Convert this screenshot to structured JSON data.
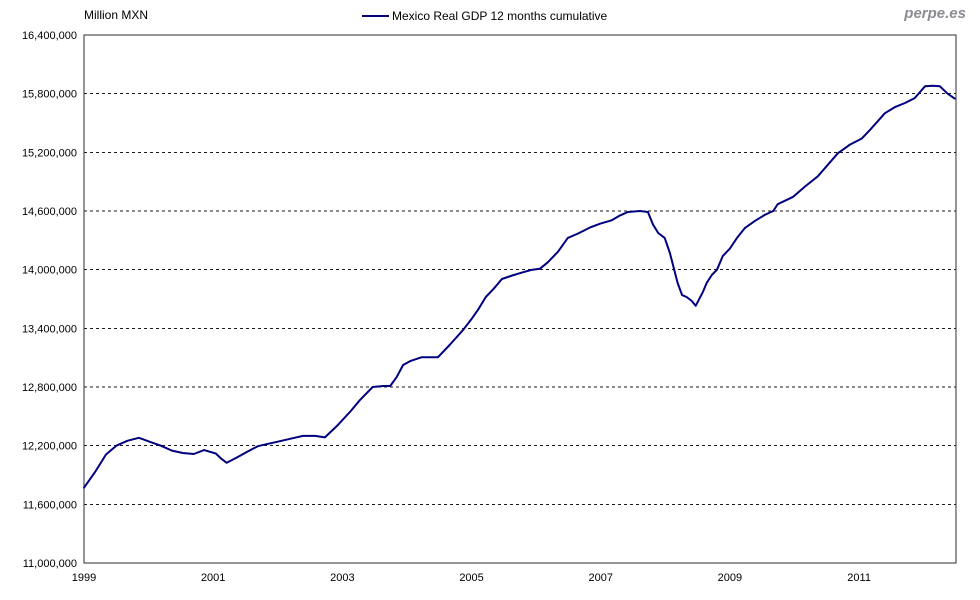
{
  "header": {
    "y_axis_title": "Million MXN",
    "watermark": "perpe.es"
  },
  "legend": {
    "label": "Mexico Real GDP 12 months cumulative"
  },
  "colors": {
    "line": "#000080",
    "grid": "#1a1a1a",
    "axis": "#2e2e2e",
    "text": "#000000",
    "watermark": "#8b8b93"
  },
  "chart_data": {
    "type": "line",
    "title": "Mexico Real GDP 12 months cumulative",
    "ylabel": "Million MXN",
    "grid": "horizontal-dashed",
    "legend_position": "top-center",
    "xlim": [
      1999,
      2012.5
    ],
    "ylim": [
      11000000,
      16400000
    ],
    "y_tick_step": 600000,
    "y_ticks": [
      16400000,
      15800000,
      15200000,
      14600000,
      14000000,
      13400000,
      12800000,
      12200000,
      11600000,
      11000000
    ],
    "x_ticks": [
      1999,
      2001,
      2003,
      2005,
      2007,
      2009,
      2011
    ],
    "series": [
      {
        "name": "Mexico Real GDP 12 months cumulative",
        "color": "#000080",
        "points": [
          [
            1999.0,
            11770000
          ],
          [
            1999.17,
            11930000
          ],
          [
            1999.34,
            12110000
          ],
          [
            1999.5,
            12200000
          ],
          [
            1999.67,
            12250000
          ],
          [
            1999.85,
            12280000
          ],
          [
            2000.02,
            12240000
          ],
          [
            2000.19,
            12200000
          ],
          [
            2000.36,
            12150000
          ],
          [
            2000.53,
            12125000
          ],
          [
            2000.7,
            12115000
          ],
          [
            2000.86,
            12155000
          ],
          [
            2001.04,
            12120000
          ],
          [
            2001.12,
            12070000
          ],
          [
            2001.21,
            12025000
          ],
          [
            2001.37,
            12080000
          ],
          [
            2001.52,
            12135000
          ],
          [
            2001.69,
            12195000
          ],
          [
            2001.79,
            12210000
          ],
          [
            2001.99,
            12240000
          ],
          [
            2002.19,
            12270000
          ],
          [
            2002.39,
            12300000
          ],
          [
            2002.58,
            12300000
          ],
          [
            2002.73,
            12285000
          ],
          [
            2002.93,
            12410000
          ],
          [
            2003.13,
            12555000
          ],
          [
            2003.27,
            12665000
          ],
          [
            2003.47,
            12800000
          ],
          [
            2003.63,
            12810000
          ],
          [
            2003.74,
            12810000
          ],
          [
            2003.84,
            12900000
          ],
          [
            2003.94,
            13025000
          ],
          [
            2004.05,
            13065000
          ],
          [
            2004.23,
            13105000
          ],
          [
            2004.48,
            13105000
          ],
          [
            2004.66,
            13230000
          ],
          [
            2004.87,
            13385000
          ],
          [
            2005.01,
            13505000
          ],
          [
            2005.1,
            13590000
          ],
          [
            2005.22,
            13720000
          ],
          [
            2005.35,
            13810000
          ],
          [
            2005.47,
            13905000
          ],
          [
            2005.63,
            13940000
          ],
          [
            2005.78,
            13970000
          ],
          [
            2005.94,
            14000000
          ],
          [
            2006.06,
            14010000
          ],
          [
            2006.18,
            14075000
          ],
          [
            2006.34,
            14185000
          ],
          [
            2006.49,
            14325000
          ],
          [
            2006.65,
            14370000
          ],
          [
            2006.83,
            14430000
          ],
          [
            2006.99,
            14470000
          ],
          [
            2007.17,
            14505000
          ],
          [
            2007.3,
            14555000
          ],
          [
            2007.42,
            14590000
          ],
          [
            2007.61,
            14600000
          ],
          [
            2007.73,
            14590000
          ],
          [
            2007.81,
            14460000
          ],
          [
            2007.89,
            14375000
          ],
          [
            2007.99,
            14325000
          ],
          [
            2008.07,
            14170000
          ],
          [
            2008.13,
            14020000
          ],
          [
            2008.19,
            13865000
          ],
          [
            2008.26,
            13740000
          ],
          [
            2008.33,
            13720000
          ],
          [
            2008.41,
            13680000
          ],
          [
            2008.47,
            13630000
          ],
          [
            2008.58,
            13770000
          ],
          [
            2008.64,
            13865000
          ],
          [
            2008.72,
            13945000
          ],
          [
            2008.8,
            14000000
          ],
          [
            2008.89,
            14140000
          ],
          [
            2009.0,
            14215000
          ],
          [
            2009.11,
            14325000
          ],
          [
            2009.23,
            14425000
          ],
          [
            2009.39,
            14500000
          ],
          [
            2009.54,
            14560000
          ],
          [
            2009.67,
            14600000
          ],
          [
            2009.74,
            14670000
          ],
          [
            2009.98,
            14745000
          ],
          [
            2010.16,
            14850000
          ],
          [
            2010.36,
            14955000
          ],
          [
            2010.67,
            15190000
          ],
          [
            2010.86,
            15280000
          ],
          [
            2011.04,
            15340000
          ],
          [
            2011.17,
            15430000
          ],
          [
            2011.4,
            15600000
          ],
          [
            2011.56,
            15665000
          ],
          [
            2011.71,
            15705000
          ],
          [
            2011.86,
            15755000
          ],
          [
            2012.02,
            15875000
          ],
          [
            2012.14,
            15880000
          ],
          [
            2012.25,
            15875000
          ],
          [
            2012.37,
            15800000
          ],
          [
            2012.48,
            15750000
          ]
        ]
      }
    ]
  }
}
